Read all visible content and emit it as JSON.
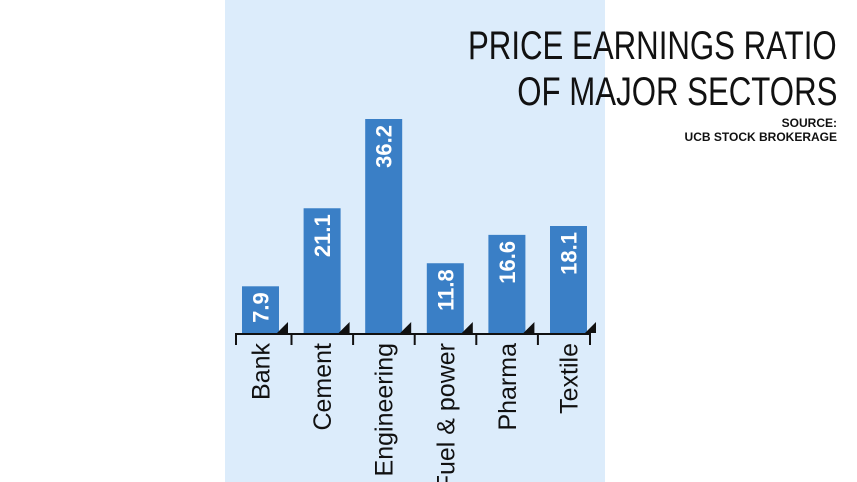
{
  "chart_data": {
    "type": "bar",
    "title": [
      "PRICE EARNINGS RATIO",
      "OF MAJOR SECTORS"
    ],
    "source": [
      "SOURCE:",
      "UCB STOCK BROKERAGE"
    ],
    "categories": [
      "Bank",
      "Cement",
      "Engineering",
      "Fuel & power",
      "Pharma",
      "Textile"
    ],
    "values": [
      7.9,
      21.1,
      36.2,
      11.8,
      16.6,
      18.1
    ],
    "value_labels": [
      "7.9",
      "21.1",
      "36.2",
      "11.8",
      "16.6",
      "18.1"
    ],
    "xlabel": "",
    "ylabel": "",
    "ylim": [
      0,
      36.2
    ],
    "grid": false,
    "legend": "none"
  },
  "colors": {
    "background": "#dcecfb",
    "bar": "#3a7fc6",
    "bar_label": "#ffffff",
    "axis": "#111111",
    "text": "#111111"
  }
}
